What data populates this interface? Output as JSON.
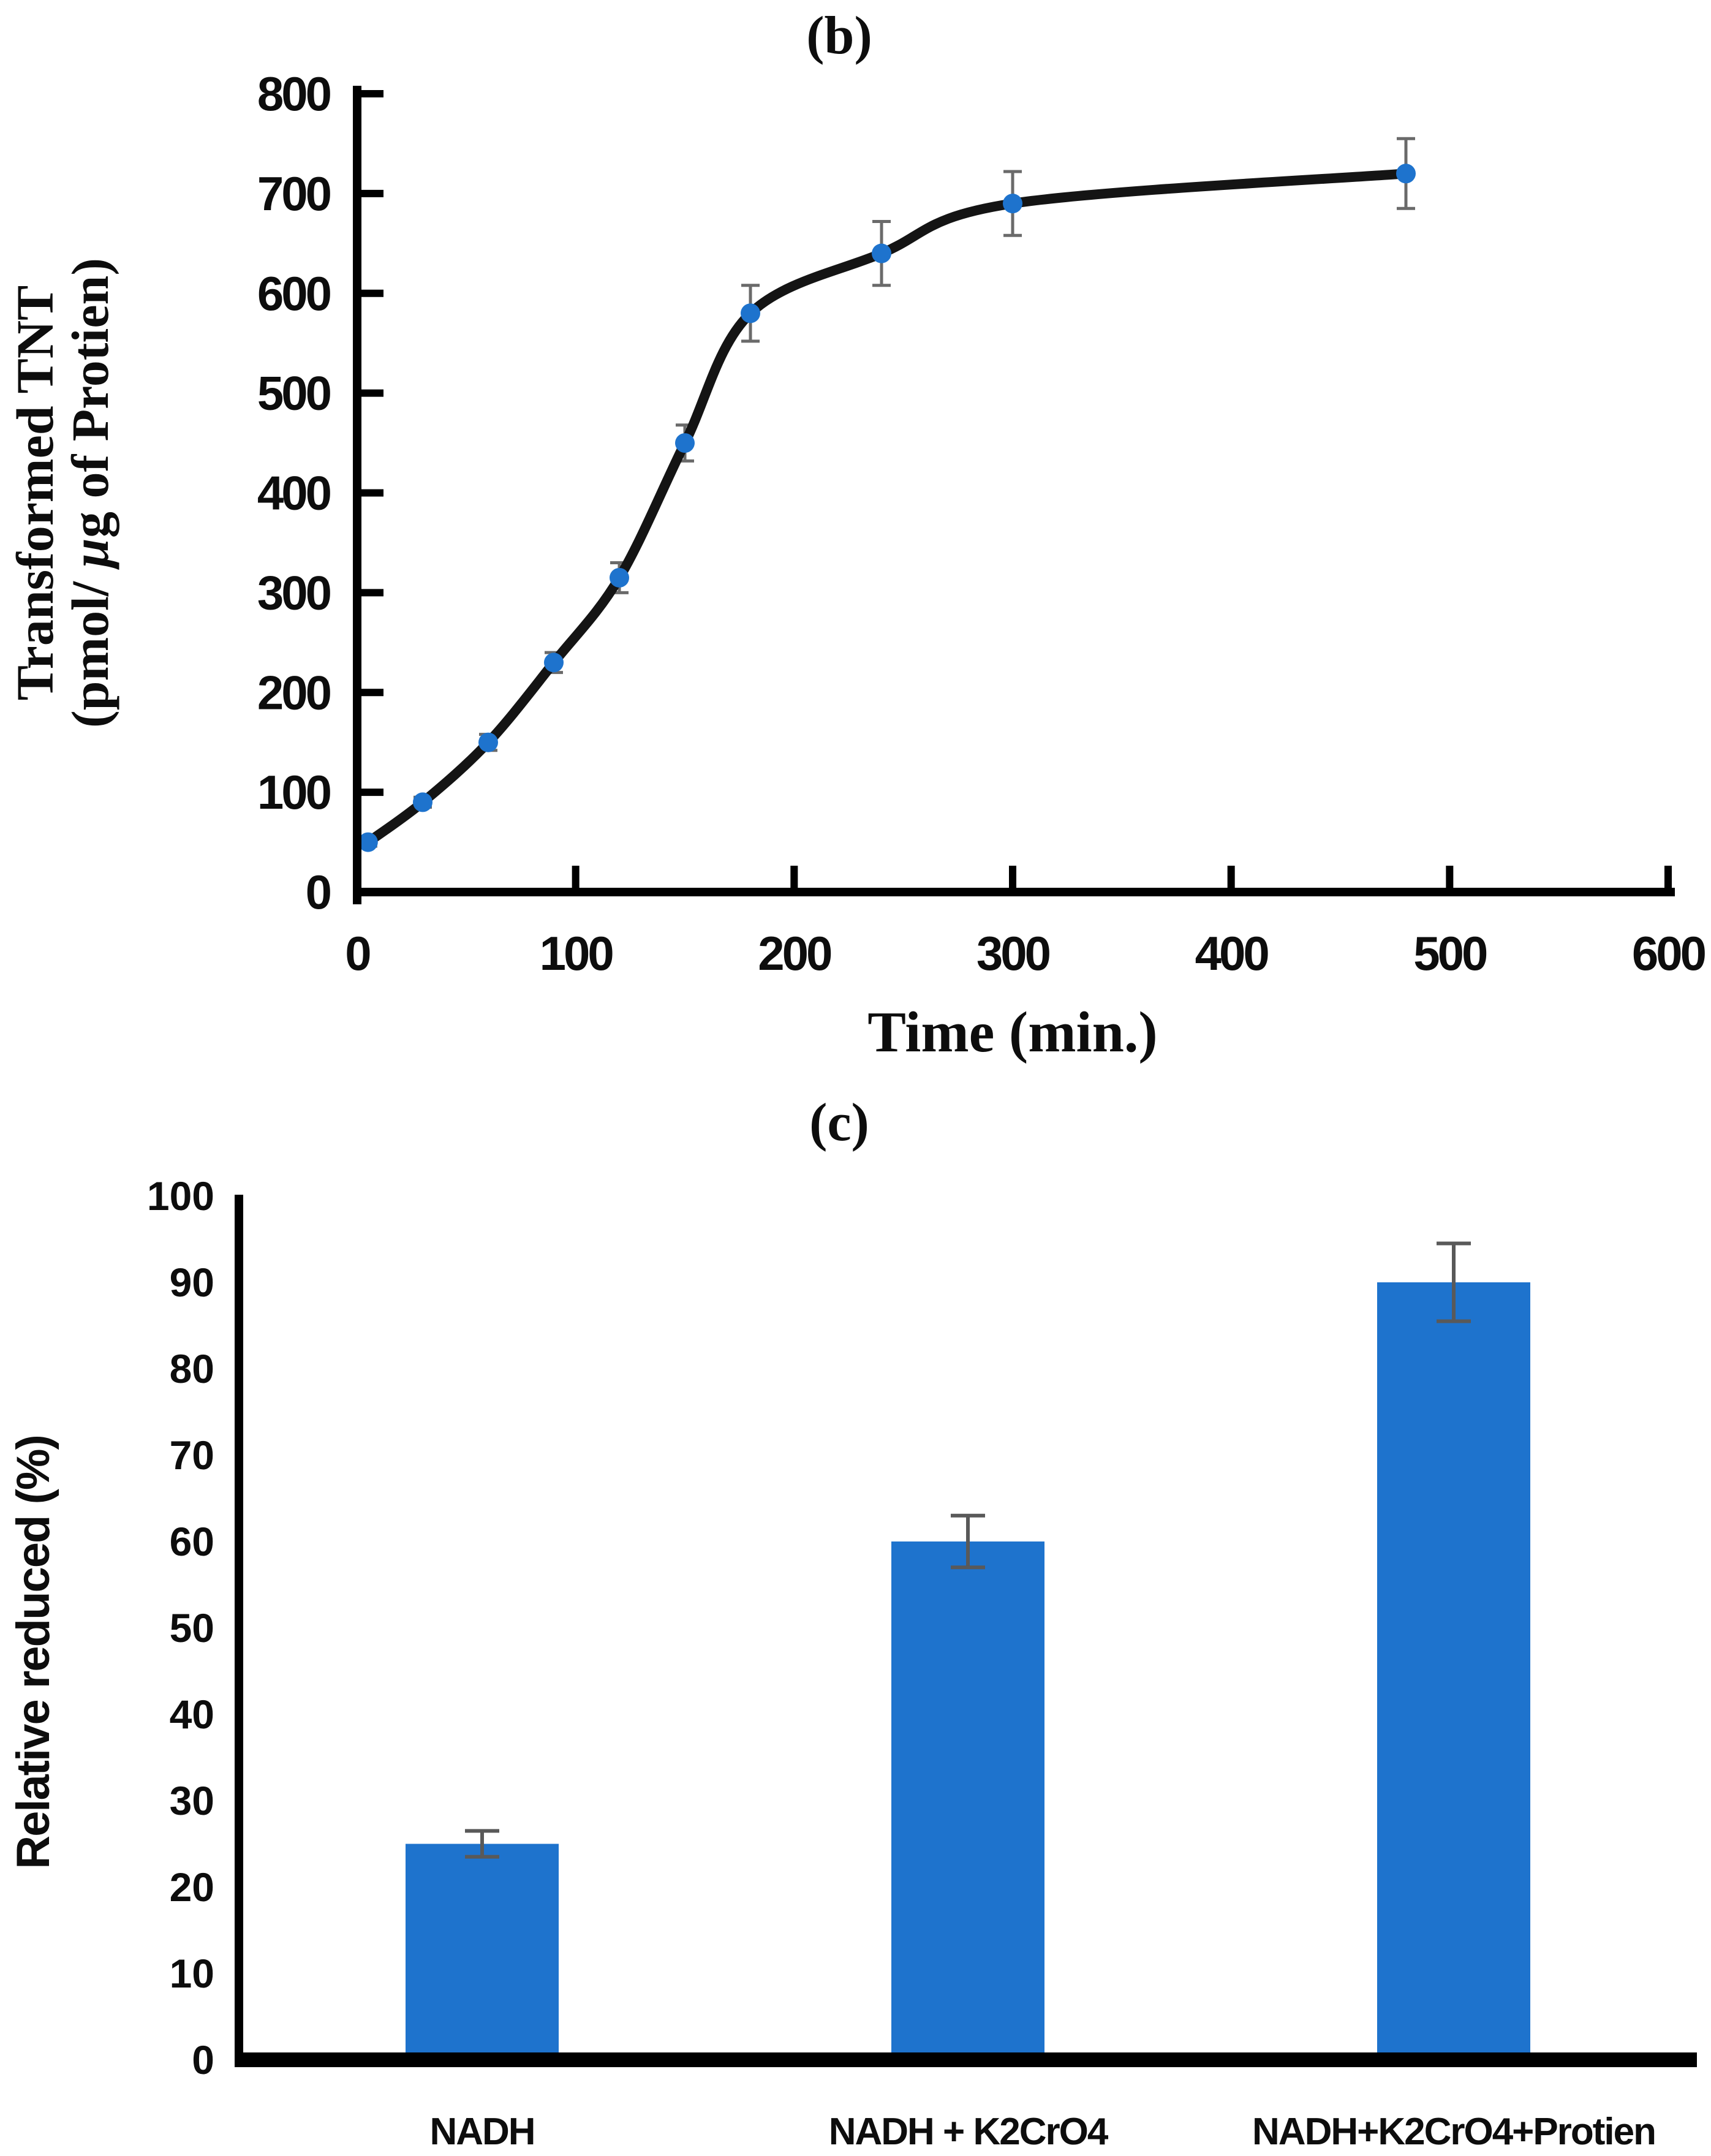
{
  "panels": {
    "b": {
      "label": "(b)"
    },
    "c": {
      "label": "(c)"
    }
  },
  "chart_data": [
    {
      "id": "b",
      "type": "line",
      "panel_label": "(b)",
      "xlabel": "Time (min.)",
      "ylabel_line1": "Transformed TNT",
      "ylabel_line2": "(pmol/ µg of Protien)",
      "xlim": [
        0,
        600
      ],
      "ylim": [
        0,
        800
      ],
      "xticks": [
        0,
        100,
        200,
        300,
        400,
        500,
        600
      ],
      "yticks": [
        0,
        100,
        200,
        300,
        400,
        500,
        600,
        700,
        800
      ],
      "x": [
        5,
        30,
        60,
        90,
        120,
        150,
        180,
        240,
        300,
        480
      ],
      "y": [
        50,
        90,
        150,
        230,
        315,
        450,
        580,
        640,
        690,
        720
      ],
      "yerr": [
        4,
        5,
        8,
        10,
        15,
        18,
        28,
        32,
        32,
        35
      ],
      "grid": "off",
      "legend": "none",
      "line_color": "#141414",
      "marker_color": "#1e73cd",
      "error_color": "#6a6a6a",
      "axis_color": "#000000"
    },
    {
      "id": "c",
      "type": "bar",
      "panel_label": "(c)",
      "xlabel": "",
      "ylabel": "Relative reduced (%)",
      "ylim": [
        0,
        100
      ],
      "yticks": [
        0,
        10,
        20,
        30,
        40,
        50,
        60,
        70,
        80,
        90,
        100
      ],
      "categories": [
        "NADH",
        "NADH + K2CrO4",
        "NADH+K2CrO4+Protien"
      ],
      "values": [
        25,
        60,
        90
      ],
      "yerr": [
        1.5,
        3,
        4.5
      ],
      "grid": "off",
      "legend": "none",
      "bar_color": "#1e73cd",
      "error_color": "#595959",
      "axis_color": "#000000"
    }
  ]
}
